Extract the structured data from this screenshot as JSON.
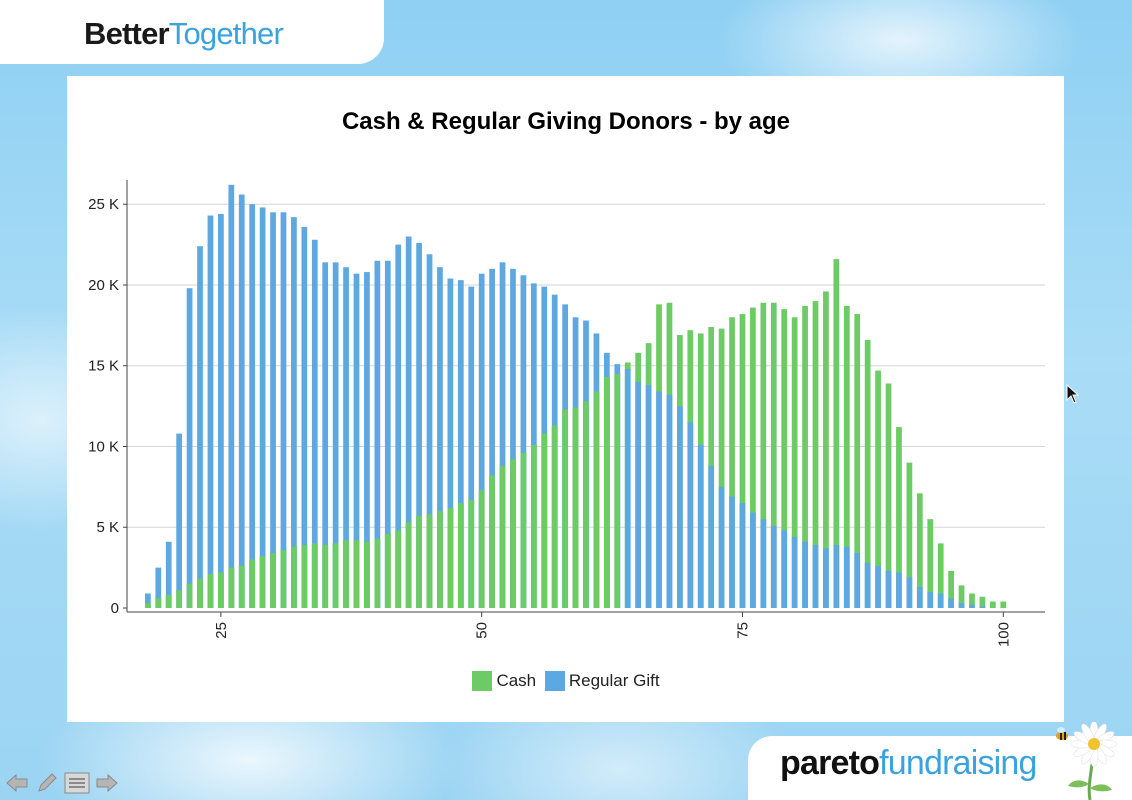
{
  "header": {
    "brand_part1": "Better",
    "brand_part2": "Together"
  },
  "footer": {
    "brand_part1": "pareto",
    "brand_part2": "fundraising",
    "nav": [
      "back-icon",
      "pen-icon",
      "menu-icon",
      "forward-icon"
    ]
  },
  "colors": {
    "cash": "#6ccb64",
    "regular_gift": "#5ea8e2",
    "brand_blue": "#3aa3de"
  },
  "chart_data": {
    "type": "bar",
    "title": "Cash & Regular Giving Donors - by age",
    "xlabel": "",
    "ylabel": "",
    "x_ticks": [
      25,
      50,
      75,
      100
    ],
    "y_ticks": [
      {
        "value": 0,
        "label": "0"
      },
      {
        "value": 5000,
        "label": "5 K"
      },
      {
        "value": 10000,
        "label": "10 K"
      },
      {
        "value": 15000,
        "label": "15 K"
      },
      {
        "value": 20000,
        "label": "20 K"
      },
      {
        "value": 25000,
        "label": "25 K"
      }
    ],
    "xlim": [
      16,
      104
    ],
    "ylim": [
      0,
      26500
    ],
    "grid": true,
    "legend_position": "bottom-center",
    "ages": [
      18,
      19,
      20,
      21,
      22,
      23,
      24,
      25,
      26,
      27,
      28,
      29,
      30,
      31,
      32,
      33,
      34,
      35,
      36,
      37,
      38,
      39,
      40,
      41,
      42,
      43,
      44,
      45,
      46,
      47,
      48,
      49,
      50,
      51,
      52,
      53,
      54,
      55,
      56,
      57,
      58,
      59,
      60,
      61,
      62,
      63,
      64,
      65,
      66,
      67,
      68,
      69,
      70,
      71,
      72,
      73,
      74,
      75,
      76,
      77,
      78,
      79,
      80,
      81,
      82,
      83,
      84,
      85,
      86,
      87,
      88,
      89,
      90,
      91,
      92,
      93,
      94,
      95,
      96,
      97,
      98,
      99,
      100
    ],
    "series": [
      {
        "name": "Cash",
        "values": [
          300,
          600,
          800,
          1100,
          1500,
          1800,
          2100,
          2200,
          2500,
          2600,
          3000,
          3200,
          3400,
          3600,
          3800,
          3900,
          4000,
          3900,
          4000,
          4200,
          4200,
          4100,
          4300,
          4600,
          4800,
          5300,
          5700,
          5800,
          6000,
          6200,
          6500,
          6700,
          7300,
          8200,
          8800,
          9200,
          9600,
          10100,
          10800,
          11300,
          12300,
          12400,
          12800,
          13400,
          14300,
          14500,
          15200,
          15800,
          16400,
          18800,
          18900,
          16900,
          17200,
          17000,
          17400,
          17300,
          18000,
          18200,
          18600,
          18900,
          18900,
          18500,
          18000,
          18700,
          19000,
          19600,
          21600,
          18700,
          18200,
          16600,
          14700,
          13900,
          11200,
          9000,
          7100,
          5500,
          4000,
          2300,
          1400,
          900,
          700,
          400,
          400
        ]
      },
      {
        "name": "Regular Gift",
        "values": [
          900,
          2500,
          4100,
          10800,
          19800,
          22400,
          24300,
          24400,
          26200,
          25600,
          25000,
          24800,
          24500,
          24500,
          24200,
          23600,
          22800,
          21400,
          21400,
          21100,
          20700,
          20800,
          21500,
          21500,
          22500,
          23000,
          22600,
          21900,
          21100,
          20400,
          20300,
          19900,
          20700,
          21000,
          21400,
          21000,
          20600,
          20100,
          19900,
          19400,
          18800,
          18000,
          17800,
          17000,
          15800,
          15100,
          14800,
          14000,
          13800,
          13400,
          13200,
          12500,
          11500,
          10100,
          8800,
          7500,
          6900,
          6500,
          5900,
          5500,
          5100,
          4800,
          4400,
          4100,
          3900,
          3700,
          3900,
          3800,
          3400,
          2800,
          2600,
          2300,
          2200,
          1900,
          1300,
          1000,
          900,
          600,
          300,
          200,
          100,
          0,
          0
        ]
      }
    ]
  }
}
